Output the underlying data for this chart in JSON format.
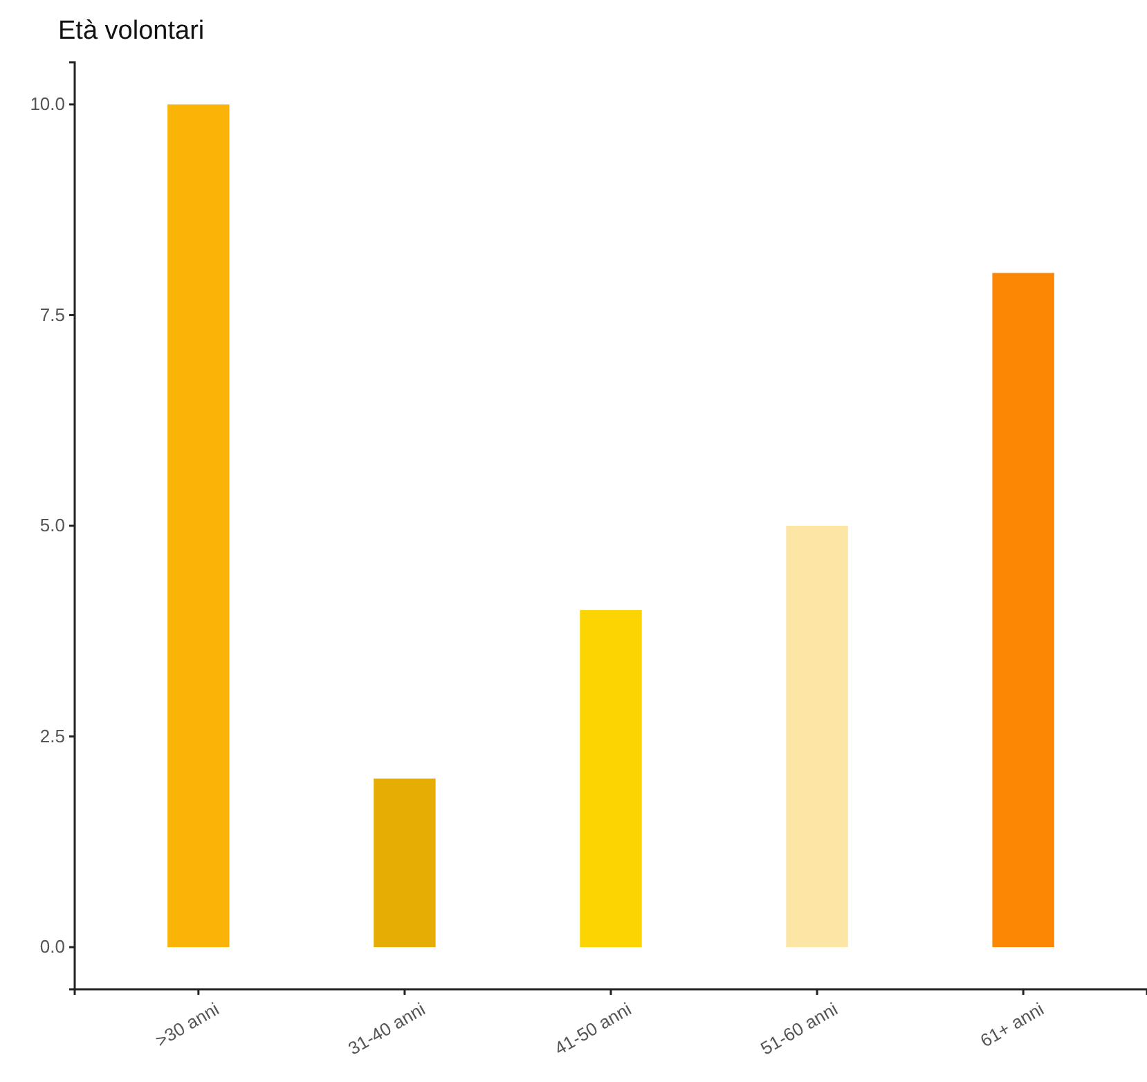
{
  "chart_data": {
    "type": "bar",
    "title": "Età volontari",
    "categories": [
      ">30 anni",
      "31-40 anni",
      "41-50 anni",
      "51-60 anni",
      "61+ anni"
    ],
    "values": [
      10,
      2,
      4,
      5,
      8
    ],
    "colors": [
      "#fab407",
      "#e6ad05",
      "#fcd402",
      "#fde5a6",
      "#fc8705"
    ],
    "ylim": [
      -0.5,
      10.5
    ],
    "yticks": [
      {
        "value": 0,
        "label": "0.0"
      },
      {
        "value": 2.5,
        "label": "2.5"
      },
      {
        "value": 5,
        "label": "5.0"
      },
      {
        "value": 7.5,
        "label": "7.5"
      },
      {
        "value": 10,
        "label": "10.0"
      }
    ],
    "grid": false,
    "legend": false
  }
}
